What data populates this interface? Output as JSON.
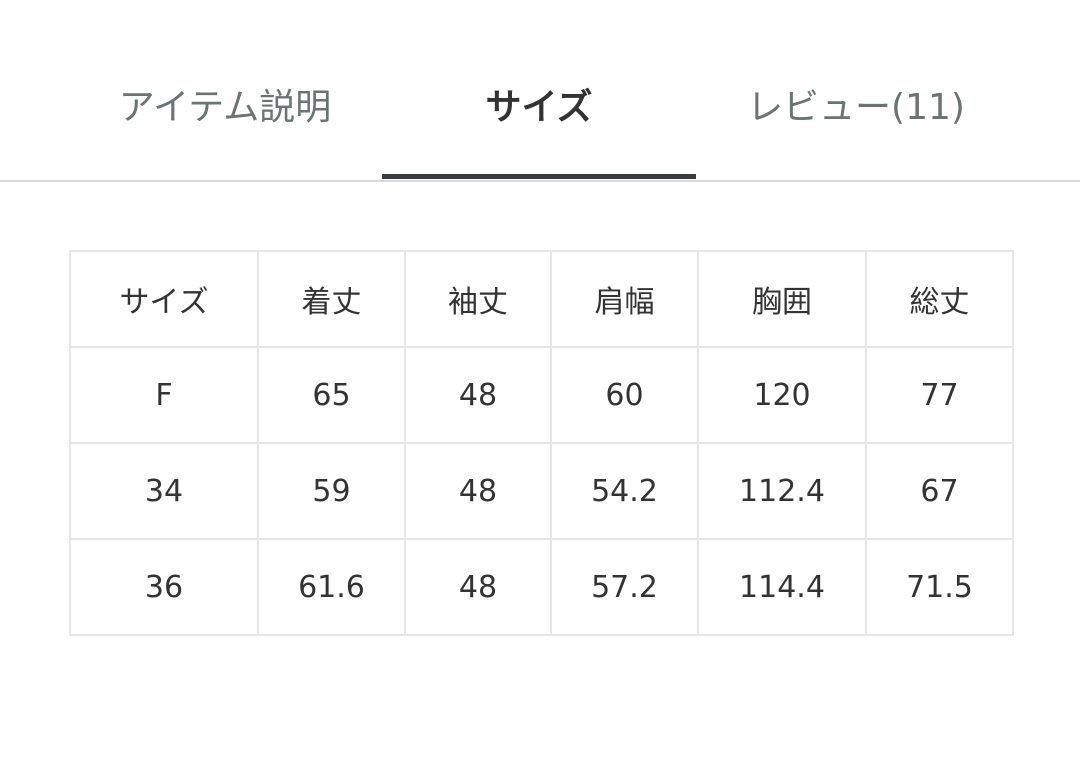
{
  "tabs": [
    {
      "label": "アイテム説明",
      "active": false
    },
    {
      "label": "サイズ",
      "active": true
    },
    {
      "label": "レビュー(11)",
      "active": false
    }
  ],
  "size_table": {
    "headers": [
      "サイズ",
      "着丈",
      "袖丈",
      "肩幅",
      "胸囲",
      "総丈"
    ],
    "rows": [
      [
        "F",
        "65",
        "48",
        "60",
        "120",
        "77"
      ],
      [
        "34",
        "59",
        "48",
        "54.2",
        "112.4",
        "67"
      ],
      [
        "36",
        "61.6",
        "48",
        "57.2",
        "114.4",
        "71.5"
      ]
    ]
  }
}
